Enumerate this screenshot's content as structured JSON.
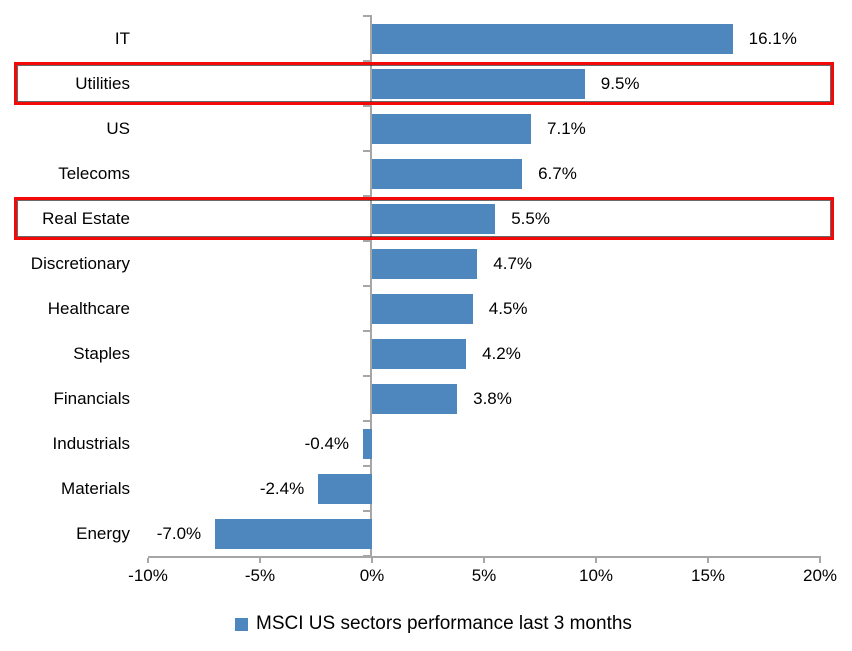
{
  "chart_data": {
    "type": "bar",
    "orientation": "horizontal",
    "title": "",
    "categories": [
      "IT",
      "Utilities",
      "US",
      "Telecoms",
      "Real Estate",
      "Discretionary",
      "Healthcare",
      "Staples",
      "Financials",
      "Industrials",
      "Materials",
      "Energy"
    ],
    "values": [
      16.1,
      9.5,
      7.1,
      6.7,
      5.5,
      4.7,
      4.5,
      4.2,
      3.8,
      -0.4,
      -2.4,
      -7.0
    ],
    "value_labels": [
      "16.1%",
      "9.5%",
      "7.1%",
      "6.7%",
      "5.5%",
      "4.7%",
      "4.5%",
      "4.2%",
      "3.8%",
      "-0.4%",
      "-2.4%",
      "-7.0%"
    ],
    "xlim": [
      -10,
      20
    ],
    "x_tick_values": [
      -10,
      -5,
      0,
      5,
      10,
      15,
      20
    ],
    "x_ticks": [
      "-10%",
      "-5%",
      "0%",
      "5%",
      "10%",
      "15%",
      "20%"
    ],
    "grid": false,
    "legend": "MSCI US sectors performance last 3 months",
    "legend_position": "bottom",
    "bar_color": "#4e86be",
    "axis_color": "#a6a6a6",
    "highlight_color": "#f40909",
    "highlighted_categories": [
      "Utilities",
      "Real Estate"
    ]
  }
}
